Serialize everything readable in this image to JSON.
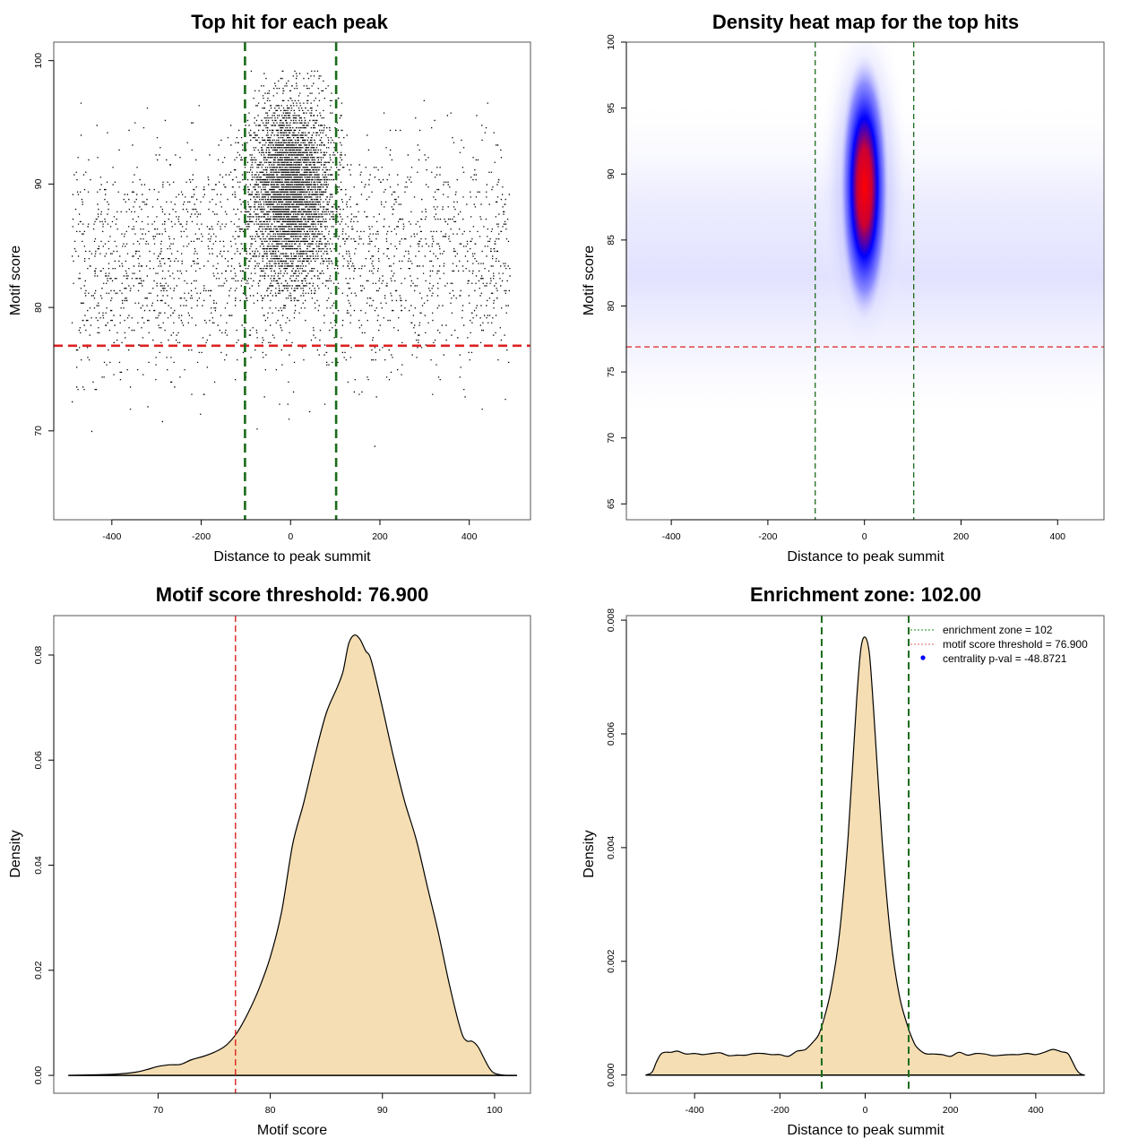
{
  "chart_data": [
    {
      "id": "scatter",
      "type": "scatter",
      "title": "Top hit for each peak",
      "xlabel": "Distance to peak summit",
      "ylabel": "Motif score",
      "xlim": [
        -530,
        537
      ],
      "ylim": [
        62.8,
        101.5
      ],
      "x_ticks": [
        -400,
        -200,
        0,
        200,
        400
      ],
      "x_tick_labels": [
        "-400",
        "-200",
        "0",
        "200",
        "400"
      ],
      "y_ticks": [
        70,
        80,
        90,
        100
      ],
      "y_tick_labels": [
        "70",
        "80",
        "90",
        "100"
      ],
      "point_color": "#000000",
      "description": "Top motif hit per peak; dense cluster of points centred at 0 (sd ~45) with scores ~82-99, plus a uniform background across -490..490 with scores ~64-98",
      "point_groups": [
        {
          "name": "centered",
          "x_center": 0,
          "x_sd": 45,
          "y_mean": 89.5,
          "y_sd": 3.6,
          "count": 5200
        },
        {
          "name": "background",
          "x_min": -490,
          "x_max": 490,
          "y_mean": 84,
          "y_sd": 4.6,
          "count": 2400
        }
      ],
      "hlines": [
        {
          "y": 76.9,
          "color": "#dd2222",
          "style": "dashed",
          "name": "motif-threshold"
        }
      ],
      "vlines": [
        {
          "x": -102,
          "color": "#1a6b1a",
          "style": "dashed",
          "name": "enrichment-zone-left"
        },
        {
          "x": 102,
          "color": "#1a6b1a",
          "style": "dashed",
          "name": "enrichment-zone-right"
        }
      ]
    },
    {
      "id": "heatmap",
      "type": "heatmap",
      "title": "Density heat map for the top hits",
      "xlabel": "Distance to peak summit",
      "ylabel": "Motif score",
      "xlim": [
        -493,
        496
      ],
      "ylim": [
        63.8,
        100
      ],
      "x_ticks": [
        -400,
        -200,
        0,
        200,
        400
      ],
      "x_tick_labels": [
        "-400",
        "-200",
        "0",
        "200",
        "400"
      ],
      "y_ticks": [
        65,
        70,
        75,
        80,
        85,
        90,
        95,
        100
      ],
      "y_tick_labels": [
        "65",
        "70",
        "75",
        "80",
        "85",
        "90",
        "95",
        "100"
      ],
      "color_scale": [
        "#ffffff",
        "#0000ff",
        "#ff0000"
      ],
      "hotspot": {
        "x": 0,
        "y": 89,
        "x_sd": 28,
        "y_sd": 4.2,
        "intensity": 1.0
      },
      "background_band": {
        "y_center": 84,
        "y_sd": 5,
        "intensity": 0.1
      },
      "hlines": [
        {
          "y": 76.9,
          "color": "#dd2222",
          "style": "dashed"
        }
      ],
      "vlines": [
        {
          "x": -102,
          "color": "#1a6b1a",
          "style": "dashed"
        },
        {
          "x": 102,
          "color": "#1a6b1a",
          "style": "dashed"
        }
      ]
    },
    {
      "id": "score-density",
      "type": "area",
      "title": "Motif score threshold: 76.900",
      "xlabel": "Motif score",
      "ylabel": "Density",
      "xlim": [
        60.7,
        103.2
      ],
      "ylim": [
        -0.0034,
        0.0875
      ],
      "x_ticks": [
        70,
        80,
        90,
        100
      ],
      "x_tick_labels": [
        "70",
        "80",
        "90",
        "100"
      ],
      "y_ticks": [
        0,
        0.02,
        0.04,
        0.06,
        0.08
      ],
      "y_tick_labels": [
        "0.00",
        "0.02",
        "0.04",
        "0.06",
        "0.08"
      ],
      "fill": "#f5deb3",
      "x": [
        62,
        64,
        66,
        68,
        69,
        70,
        71,
        72,
        73,
        74,
        75,
        76,
        77,
        78,
        79,
        80,
        81,
        82,
        83,
        84,
        85,
        86,
        86.5,
        87,
        87.5,
        88,
        88.5,
        89,
        90,
        91,
        92,
        93,
        94,
        95,
        96,
        97,
        97.5,
        98,
        98.5,
        99,
        99.5,
        100,
        101,
        102
      ],
      "y": [
        0.0,
        0.0001,
        0.0002,
        0.0006,
        0.0011,
        0.0017,
        0.002,
        0.0021,
        0.003,
        0.0036,
        0.0044,
        0.0056,
        0.008,
        0.0118,
        0.0165,
        0.0225,
        0.031,
        0.044,
        0.052,
        0.061,
        0.069,
        0.074,
        0.077,
        0.0822,
        0.0838,
        0.083,
        0.0808,
        0.079,
        0.07,
        0.0605,
        0.052,
        0.045,
        0.036,
        0.027,
        0.017,
        0.0085,
        0.0066,
        0.0065,
        0.0055,
        0.0035,
        0.0015,
        0.0004,
        0.0,
        0.0
      ],
      "vlines": [
        {
          "x": 76.9,
          "color": "#dd2222",
          "style": "dashed"
        }
      ]
    },
    {
      "id": "distance-density",
      "type": "area",
      "title": "Enrichment zone: 102.00",
      "xlabel": "Distance to peak summit",
      "ylabel": "Density",
      "xlim": [
        -560,
        560
      ],
      "ylim": [
        -0.00032,
        0.00808
      ],
      "x_ticks": [
        -400,
        -200,
        0,
        200,
        400
      ],
      "x_tick_labels": [
        "-400",
        "-200",
        "0",
        "200",
        "400"
      ],
      "y_ticks": [
        0,
        0.002,
        0.004,
        0.006,
        0.008
      ],
      "y_tick_labels": [
        "0.000",
        "0.002",
        "0.004",
        "0.006",
        "0.008"
      ],
      "fill": "#f5deb3",
      "x": [
        -515,
        -500,
        -490,
        -480,
        -470,
        -455,
        -440,
        -420,
        -400,
        -380,
        -360,
        -340,
        -320,
        -300,
        -280,
        -260,
        -240,
        -220,
        -200,
        -180,
        -160,
        -140,
        -120,
        -110,
        -100,
        -80,
        -60,
        -40,
        -20,
        -10,
        0,
        10,
        20,
        40,
        60,
        80,
        100,
        110,
        120,
        140,
        160,
        180,
        200,
        220,
        240,
        260,
        280,
        300,
        320,
        340,
        360,
        380,
        400,
        420,
        440,
        460,
        475,
        485,
        495,
        505,
        515
      ],
      "y": [
        0,
        5e-05,
        0.00022,
        0.00036,
        0.0004,
        0.0004,
        0.00042,
        0.00037,
        0.00038,
        0.00036,
        0.00038,
        0.00039,
        0.00034,
        0.00035,
        0.00035,
        0.00038,
        0.00038,
        0.00036,
        0.00036,
        0.00033,
        0.00042,
        0.00045,
        0.0006,
        0.0007,
        0.0009,
        0.0015,
        0.0025,
        0.0042,
        0.0066,
        0.0075,
        0.0077,
        0.0074,
        0.0064,
        0.0041,
        0.0024,
        0.0014,
        0.00085,
        0.00065,
        0.0005,
        0.00038,
        0.00037,
        0.00036,
        0.00033,
        0.0004,
        0.00035,
        0.00038,
        0.00037,
        0.00034,
        0.00035,
        0.00036,
        0.00036,
        0.00038,
        0.00036,
        0.0004,
        0.00045,
        0.00041,
        0.00038,
        0.00025,
        0.0001,
        2e-05,
        0
      ],
      "vlines": [
        {
          "x": -102,
          "color": "#1a6b1a",
          "style": "dashed"
        },
        {
          "x": 102,
          "color": "#1a6b1a",
          "style": "dashed"
        }
      ],
      "legend": {
        "position": "top-right",
        "entries": [
          {
            "label": "enrichment zone = 102",
            "color": "#1a8c1a",
            "kind": "dotted-line"
          },
          {
            "label": "motif score threshold = 76.900",
            "color": "#e06060",
            "kind": "dotted-line"
          },
          {
            "label": "centrality p-val = -48.8721",
            "color": "#0000ff",
            "kind": "point"
          }
        ]
      }
    }
  ]
}
